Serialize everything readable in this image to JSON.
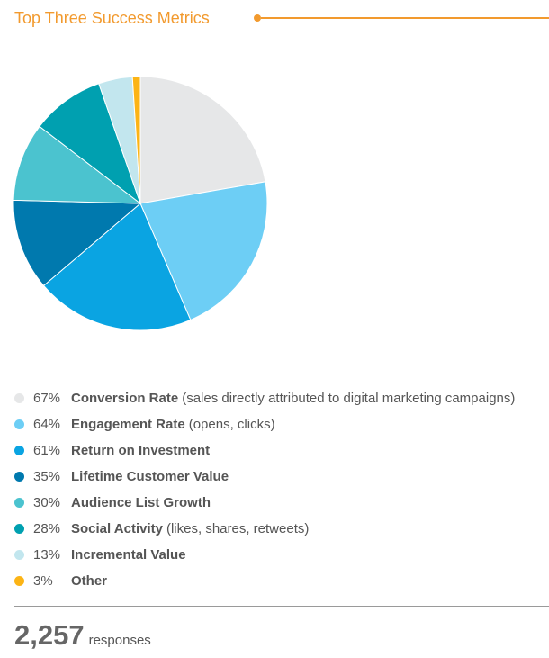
{
  "header": {
    "title": "Top Three Success Metrics"
  },
  "chart_data": {
    "type": "pie",
    "title": "Top Three Success Metrics",
    "categories": [
      "Conversion Rate",
      "Engagement Rate",
      "Return on Investment",
      "Lifetime Customer Value",
      "Audience List Growth",
      "Social Activity",
      "Incremental Value",
      "Other"
    ],
    "values": [
      67,
      64,
      61,
      35,
      30,
      28,
      13,
      3
    ],
    "legend": [
      {
        "pct": "67%",
        "label": "Conversion Rate",
        "desc": "(sales directly attributed to digital marketing campaigns)",
        "color": "#e6e7e8"
      },
      {
        "pct": "64%",
        "label": "Engagement Rate",
        "desc": "(opens, clicks)",
        "color": "#6dcef5"
      },
      {
        "pct": "61%",
        "label": "Return on Investment",
        "desc": "",
        "color": "#0aa4e2"
      },
      {
        "pct": "35%",
        "label": "Lifetime Customer Value",
        "desc": "",
        "color": "#0079ae"
      },
      {
        "pct": "30%",
        "label": "Audience List Growth",
        "desc": "",
        "color": "#4bc3cf"
      },
      {
        "pct": "28%",
        "label": "Social Activity",
        "desc": "(likes, shares, retweets)",
        "color": "#00a0b0"
      },
      {
        "pct": "13%",
        "label": "Incremental Value",
        "desc": "",
        "color": "#c2e6ee"
      },
      {
        "pct": "3%",
        "label": "Other",
        "desc": "",
        "color": "#fcb415"
      }
    ]
  },
  "responses": {
    "count": "2,257",
    "unit": "responses"
  }
}
